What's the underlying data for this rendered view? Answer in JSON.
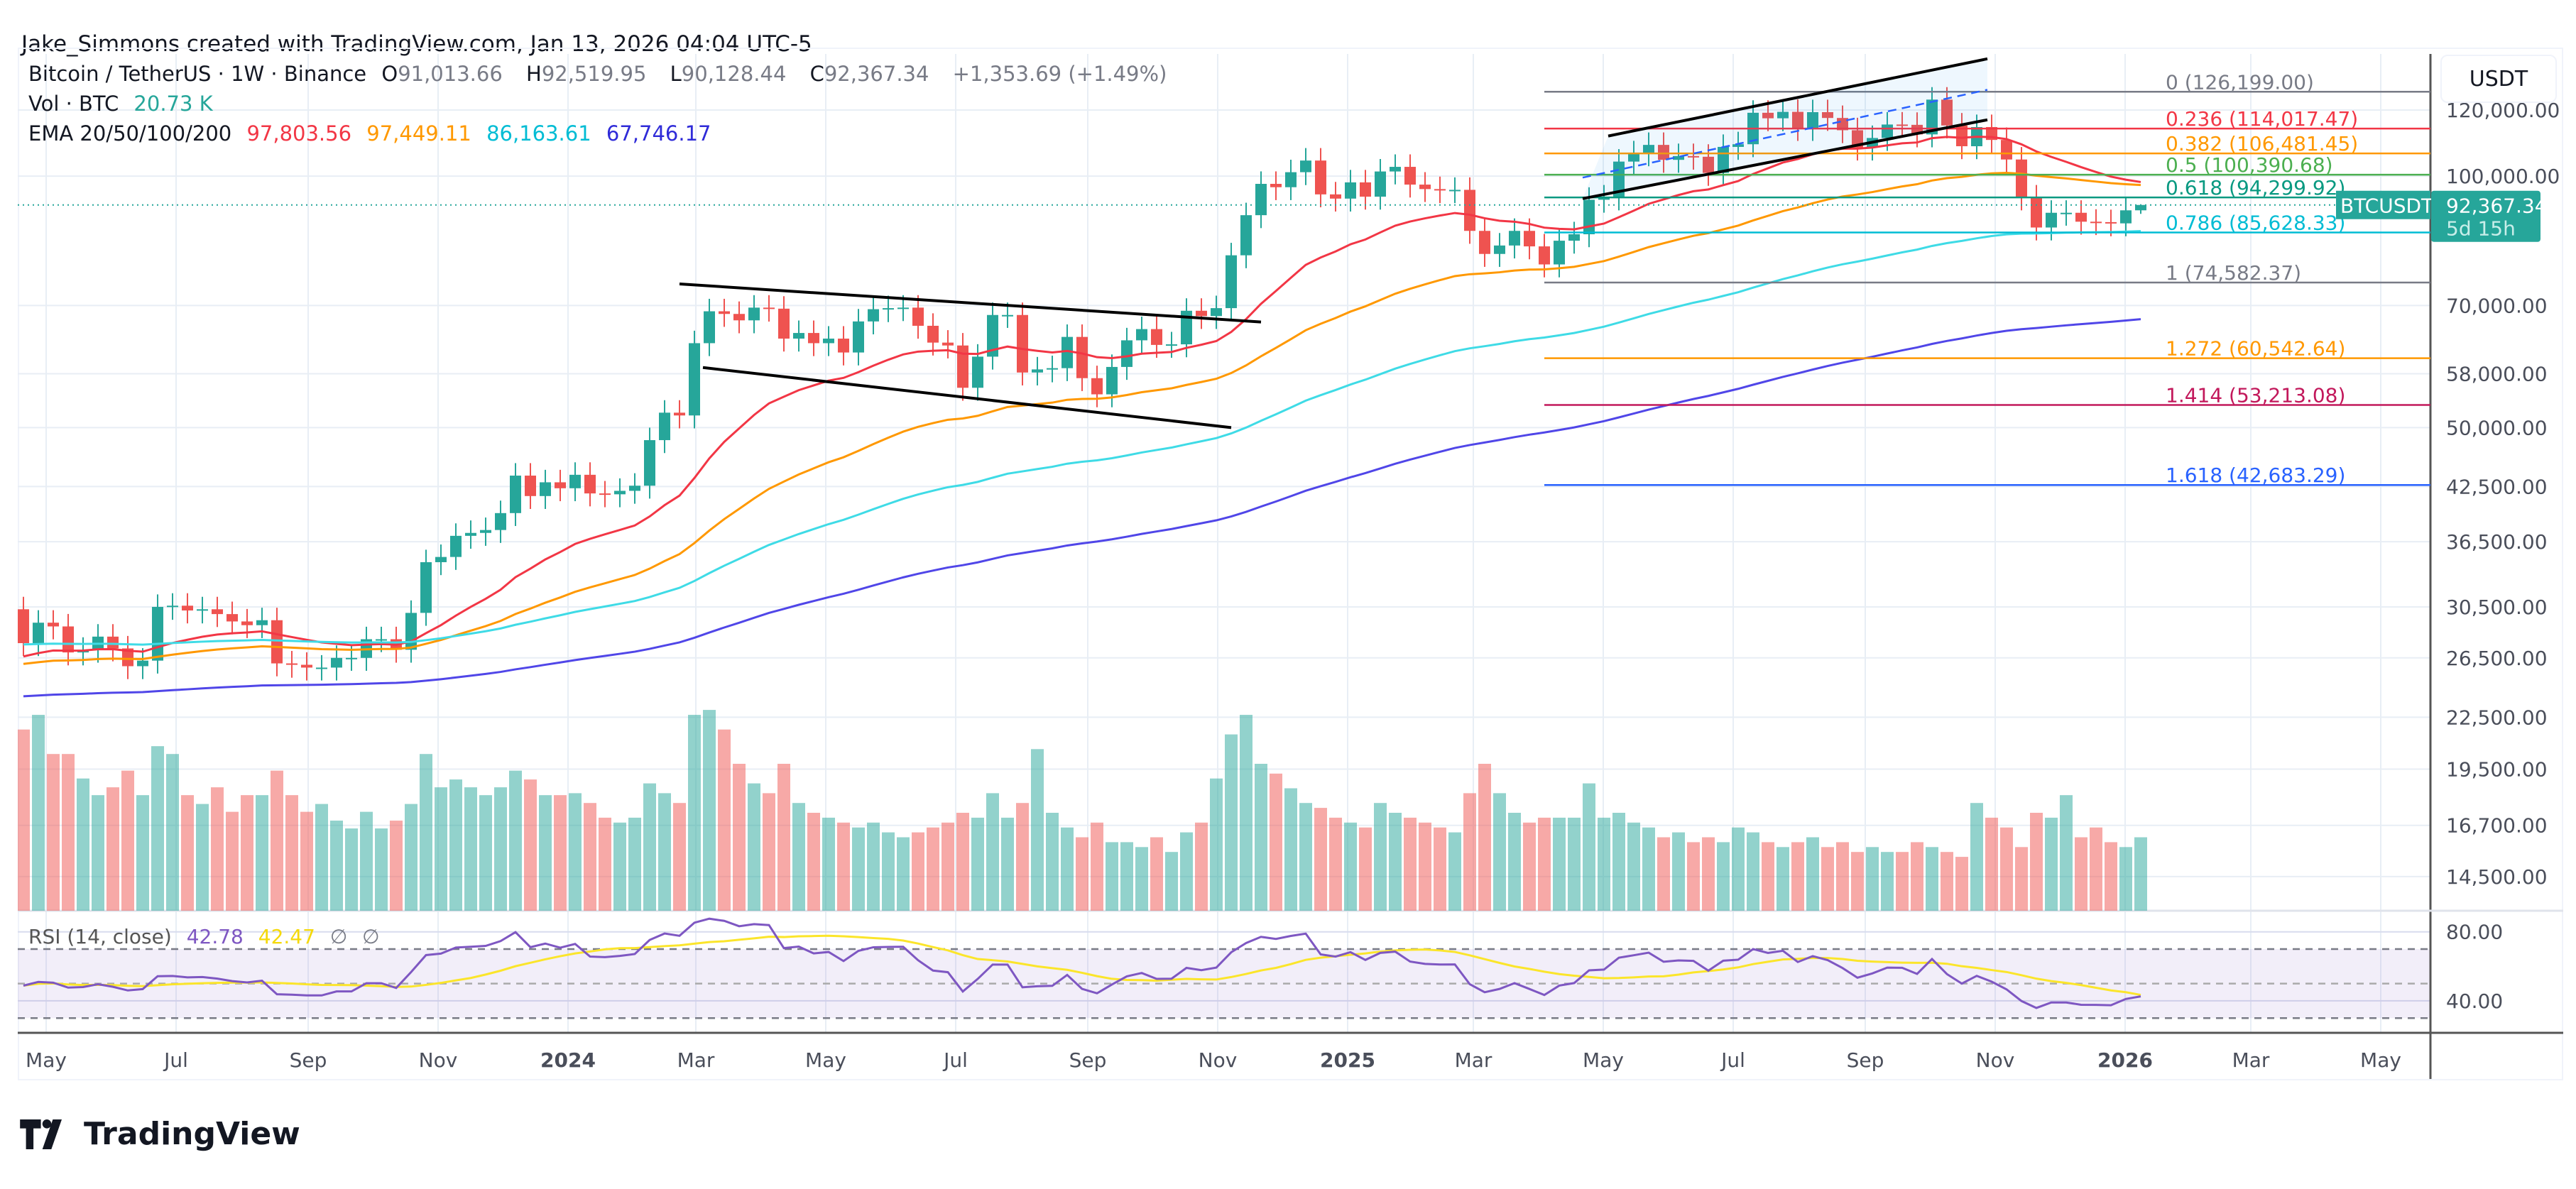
{
  "credit": "Jake_Simmons created with TradingView.com, Jan 13, 2026 04:04 UTC-5",
  "legend": {
    "symbol": "Bitcoin / TetherUS · 1W · Binance",
    "o_label": "O",
    "o": "91,013.66",
    "h_label": "H",
    "h": "92,519.95",
    "l_label": "L",
    "l": "90,128.44",
    "c_label": "C",
    "c": "92,367.34",
    "change": "+1,353.69 (+1.49%)",
    "vol_label": "Vol · BTC",
    "vol": "20.73 K",
    "ema_label": "EMA 20/50/100/200",
    "ema20": "97,803.56",
    "ema50": "97,449.11",
    "ema100": "86,163.61",
    "ema200": "67,746.17",
    "rsi_label": "RSI (14, close)",
    "rsi": "42.78",
    "rsi_ma": "42.47",
    "na1": "∅",
    "na2": "∅"
  },
  "price_axis": {
    "unit": "USDT",
    "current_tag": "BTCUSDT",
    "current_price": "92,367.34",
    "countdown": "5d 15h"
  },
  "logo": "TradingView",
  "colors": {
    "up": "#26a69a",
    "down": "#ef5350",
    "ema20": "#f23645",
    "ema50": "#ff9800",
    "ema100": "#3fdbe6",
    "ema200": "#5046e8",
    "rsi": "#7e57c2",
    "rsi_ma": "#fbe52b"
  },
  "chart_data": {
    "type": "candlestick",
    "scale": "log",
    "interval": "1W",
    "first_week": "2023-04-17",
    "first_open": 30300,
    "closes": [
      27600,
      29200,
      28900,
      26900,
      27100,
      28100,
      27200,
      25900,
      26300,
      30500,
      30600,
      30200,
      30300,
      29900,
      29300,
      29000,
      29400,
      26100,
      26000,
      25800,
      25800,
      26500,
      26500,
      27900,
      27900,
      27100,
      30000,
      34500,
      35000,
      37100,
      37400,
      37700,
      39500,
      43800,
      41400,
      43000,
      42300,
      43900,
      41700,
      41600,
      42000,
      42600,
      48300,
      52100,
      51700,
      63100,
      68900,
      68400,
      67200,
      69600,
      69400,
      63900,
      64900,
      63100,
      63900,
      61500,
      67000,
      69300,
      69500,
      69600,
      66200,
      63200,
      62700,
      55800,
      60800,
      68200,
      68200,
      58200,
      58700,
      58900,
      64200,
      57300,
      54800,
      59100,
      63600,
      65600,
      62800,
      62900,
      69000,
      68000,
      69500,
      80400,
      89800,
      97900,
      97000,
      101100,
      104400,
      95100,
      94000,
      98300,
      94500,
      101300,
      102600,
      97700,
      96500,
      96200,
      96300,
      86000,
      80700,
      82600,
      86000,
      82400,
      78400,
      83700,
      85200,
      93700,
      94300,
      104100,
      106500,
      109000,
      104600,
      105700,
      105500,
      100900,
      108400,
      109200,
      119100,
      117300,
      119400,
      114200,
      119300,
      117400,
      113500,
      108200,
      111100,
      115300,
      115200,
      112200,
      123500,
      115000,
      108600,
      114500,
      110500,
      104700,
      94300,
      86800,
      90400,
      90400,
      88200,
      88100,
      87800,
      91013.66,
      92367.34
    ],
    "last_candle": {
      "open": 91013.66,
      "high": 92519.95,
      "low": 90128.44,
      "close": 92367.34
    },
    "volume_k": [
      185,
      200,
      160,
      160,
      135,
      118,
      126,
      143,
      118,
      168,
      160,
      118,
      109,
      126,
      101,
      118,
      118,
      143,
      118,
      101,
      109,
      92,
      84,
      101,
      84,
      92,
      109,
      160,
      126,
      134,
      126,
      118,
      126,
      143,
      134,
      118,
      118,
      120,
      110,
      95,
      90,
      95,
      130,
      120,
      110,
      200,
      205,
      185,
      150,
      130,
      120,
      150,
      110,
      100,
      95,
      90,
      85,
      90,
      80,
      75,
      80,
      85,
      90,
      100,
      95,
      120,
      95,
      110,
      165,
      100,
      85,
      75,
      90,
      70,
      70,
      65,
      75,
      60,
      80,
      90,
      135,
      180,
      200,
      150,
      140,
      125,
      110,
      105,
      95,
      90,
      85,
      110,
      100,
      95,
      90,
      85,
      80,
      120,
      150,
      120,
      100,
      90,
      95,
      95,
      95,
      130,
      95,
      100,
      90,
      85,
      75,
      80,
      70,
      75,
      70,
      85,
      80,
      70,
      65,
      70,
      75,
      65,
      70,
      60,
      65,
      60,
      60,
      70,
      65,
      60,
      55,
      110,
      95,
      85,
      65,
      100,
      95,
      118,
      75,
      85,
      70,
      65,
      75,
      60,
      65,
      20.73
    ],
    "yticks": [
      "120,000.00",
      "100,000.00",
      "70,000.00",
      "58,000.00",
      "50,000.00",
      "42,500.00",
      "36,500.00",
      "30,500.00",
      "26,500.00",
      "22,500.00",
      "19,500.00",
      "16,700.00",
      "14,500.00"
    ],
    "ytick_values": [
      120000,
      100000,
      70000,
      58000,
      50000,
      42500,
      36500,
      30500,
      26500,
      22500,
      19500,
      16700,
      14500
    ],
    "rsi_ticks": [
      "80.00",
      "40.00"
    ],
    "xticks": [
      {
        "label": "May",
        "date": "2023-05-01"
      },
      {
        "label": "Jul",
        "date": "2023-07-01"
      },
      {
        "label": "Sep",
        "date": "2023-09-01"
      },
      {
        "label": "Nov",
        "date": "2023-11-01"
      },
      {
        "label": "2024",
        "date": "2024-01-01",
        "bold": true
      },
      {
        "label": "Mar",
        "date": "2024-03-01"
      },
      {
        "label": "May",
        "date": "2024-05-01"
      },
      {
        "label": "Jul",
        "date": "2024-07-01"
      },
      {
        "label": "Sep",
        "date": "2024-09-01"
      },
      {
        "label": "Nov",
        "date": "2024-11-01"
      },
      {
        "label": "2025",
        "date": "2025-01-01",
        "bold": true
      },
      {
        "label": "Mar",
        "date": "2025-03-01"
      },
      {
        "label": "May",
        "date": "2025-05-01"
      },
      {
        "label": "Jul",
        "date": "2025-07-01"
      },
      {
        "label": "Sep",
        "date": "2025-09-01"
      },
      {
        "label": "Nov",
        "date": "2025-11-01"
      },
      {
        "label": "2026",
        "date": "2026-01-01",
        "bold": true
      },
      {
        "label": "Mar",
        "date": "2026-03-01"
      },
      {
        "label": "May",
        "date": "2026-05-01"
      }
    ],
    "fib": {
      "start_date": "2025-03-31",
      "levels": [
        {
          "ratio": "0",
          "price": 126199.0,
          "label": "0 (126,199.00)",
          "color": "#787b86"
        },
        {
          "ratio": "0.236",
          "price": 114017.47,
          "label": "0.236 (114,017.47)",
          "color": "#f23645"
        },
        {
          "ratio": "0.382",
          "price": 106481.45,
          "label": "0.382 (106,481.45)",
          "color": "#ff9800"
        },
        {
          "ratio": "0.5",
          "price": 100390.68,
          "label": "0.5 (100,390.68)",
          "color": "#4caf50"
        },
        {
          "ratio": "0.618",
          "price": 94299.92,
          "label": "0.618 (94,299.92)",
          "color": "#089981"
        },
        {
          "ratio": "0.786",
          "price": 85628.33,
          "label": "0.786 (85,628.33)",
          "color": "#00bcd4"
        },
        {
          "ratio": "1",
          "price": 74582.37,
          "label": "1 (74,582.37)",
          "color": "#787b86"
        },
        {
          "ratio": "1.272",
          "price": 60542.64,
          "label": "1.272 (60,542.64)",
          "color": "#ff9800"
        },
        {
          "ratio": "1.414",
          "price": 53213.08,
          "label": "1.414 (53,213.08)",
          "color": "#c2185b"
        },
        {
          "ratio": "1.618",
          "price": 42683.29,
          "label": "1.618 (42,683.29)",
          "color": "#2962ff"
        }
      ]
    },
    "trendlines": [
      {
        "name": "descending-channel-upper",
        "from": [
          "2024-02-19",
          74300
        ],
        "to": [
          "2024-11-18",
          66900
        ]
      },
      {
        "name": "descending-channel-lower",
        "from": [
          "2024-03-01",
          59000
        ],
        "to": [
          "2024-11-04",
          50000
        ]
      },
      {
        "name": "rising-channel-upper",
        "from": [
          "2025-04-30",
          111700
        ],
        "to": [
          "2025-10-25",
          138200
        ]
      },
      {
        "name": "rising-channel-lower",
        "from": [
          "2025-04-18",
          94000
        ],
        "to": [
          "2025-10-25",
          116800
        ]
      },
      {
        "name": "rising-channel-mid",
        "from": [
          "2025-04-18",
          99600
        ],
        "to": [
          "2025-10-25",
          126900
        ],
        "dashed": true
      }
    ]
  }
}
